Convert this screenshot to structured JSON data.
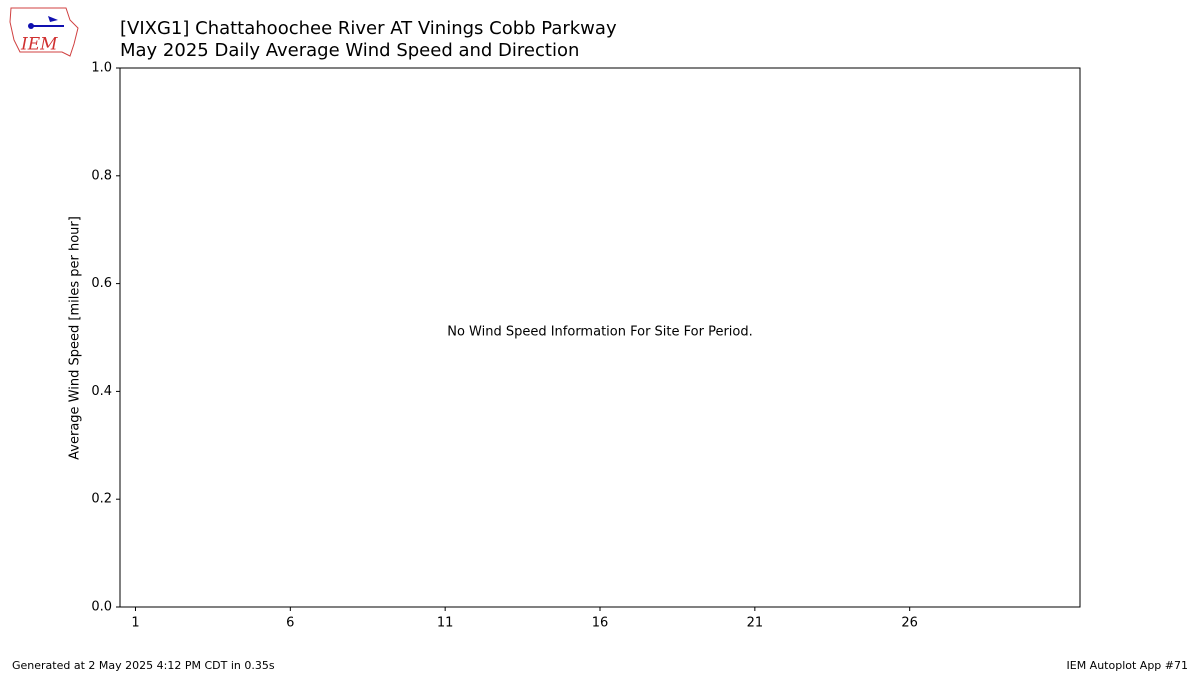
{
  "chart_data": {
    "type": "bar",
    "title": "[VIXG1] Chattahoochee River  AT Vinings Cobb Parkway",
    "subtitle": "May 2025 Daily Average Wind Speed and Direction",
    "ylabel": "Average Wind Speed [miles per hour]",
    "annotation": "No Wind Speed Information For Site For Period.",
    "xlim": [
      0.5,
      31.5
    ],
    "xticks": [
      1,
      6,
      11,
      16,
      21,
      26
    ],
    "ylim": [
      0,
      1
    ],
    "yticks": [
      {
        "value": 0,
        "label": "0.0"
      },
      {
        "value": 0.2,
        "label": "0.2"
      },
      {
        "value": 0.4,
        "label": "0.4"
      },
      {
        "value": 0.6,
        "label": "0.6"
      },
      {
        "value": 0.8,
        "label": "0.8"
      },
      {
        "value": 1,
        "label": "1.0"
      }
    ],
    "grid": false,
    "footer_left": "Generated at 2 May 2025 4:12 PM CDT in 0.35s",
    "footer_right": "IEM Autoplot App #71"
  },
  "logo_text": "IEM"
}
